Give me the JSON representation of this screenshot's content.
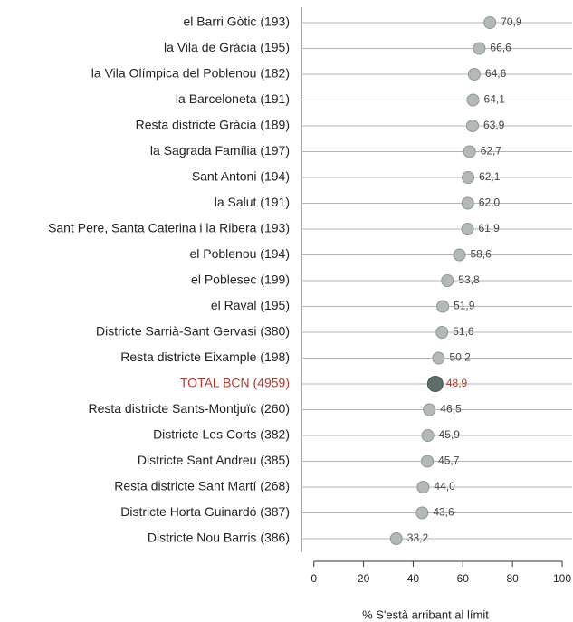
{
  "chart_data": {
    "type": "dot",
    "xlabel": "% S'està arribant al límit",
    "categories": [
      "el Barri Gòtic (193)",
      "la Vila de Gràcia (195)",
      "la Vila Olímpica del Poblenou (182)",
      "la Barceloneta (191)",
      "Resta districte Gràcia (189)",
      "la Sagrada Família (197)",
      "Sant Antoni (194)",
      "la Salut (191)",
      "Sant Pere, Santa Caterina i la Ribera (193)",
      "el Poblenou (194)",
      "el Poblesec (199)",
      "el Raval (195)",
      "Districte Sarrià-Sant Gervasi (380)",
      "Resta districte Eixample (198)",
      "TOTAL BCN (4959)",
      "Resta districte Sants-Montjuïc (260)",
      "Districte Les Corts (382)",
      "Districte Sant Andreu (385)",
      "Resta districte Sant Martí (268)",
      "Districte Horta Guinardó (387)",
      "Districte Nou Barris (386)"
    ],
    "values": [
      70.9,
      66.6,
      64.6,
      64.1,
      63.9,
      62.7,
      62.1,
      62.0,
      61.9,
      58.6,
      53.8,
      51.9,
      51.6,
      50.2,
      48.9,
      46.5,
      45.9,
      45.7,
      44.0,
      43.6,
      33.2
    ],
    "value_labels": [
      "70,9",
      "66,6",
      "64,6",
      "64,1",
      "63,9",
      "62,7",
      "62,1",
      "62,0",
      "61,9",
      "58,6",
      "53,8",
      "51,9",
      "51,6",
      "50,2",
      "48,9",
      "46,5",
      "45,9",
      "45,7",
      "44,0",
      "43,6",
      "33,2"
    ],
    "colors": [
      "#b3b9b6",
      "#b3b9b6",
      "#b3b9b6",
      "#b3b9b6",
      "#b3b9b6",
      "#b3b9b6",
      "#b3b9b6",
      "#b3b9b6",
      "#b3b9b6",
      "#b3b9b6",
      "#b3b9b6",
      "#b3b9b6",
      "#b3b9b6",
      "#b3b9b6",
      "#5e6d68",
      "#b3b9b6",
      "#b3b9b6",
      "#b3b9b6",
      "#b3b9b6",
      "#b3b9b6",
      "#b3b9b6"
    ],
    "label_colors": [
      "#222222",
      "#222222",
      "#222222",
      "#222222",
      "#222222",
      "#222222",
      "#222222",
      "#222222",
      "#222222",
      "#222222",
      "#222222",
      "#222222",
      "#222222",
      "#222222",
      "#b5382e",
      "#222222",
      "#222222",
      "#222222",
      "#222222",
      "#222222",
      "#222222"
    ],
    "highlight_color": "#5e6d68",
    "xlim": [
      -5,
      104
    ],
    "xticks": [
      0,
      20,
      40,
      60,
      80,
      100
    ],
    "grid": true
  }
}
